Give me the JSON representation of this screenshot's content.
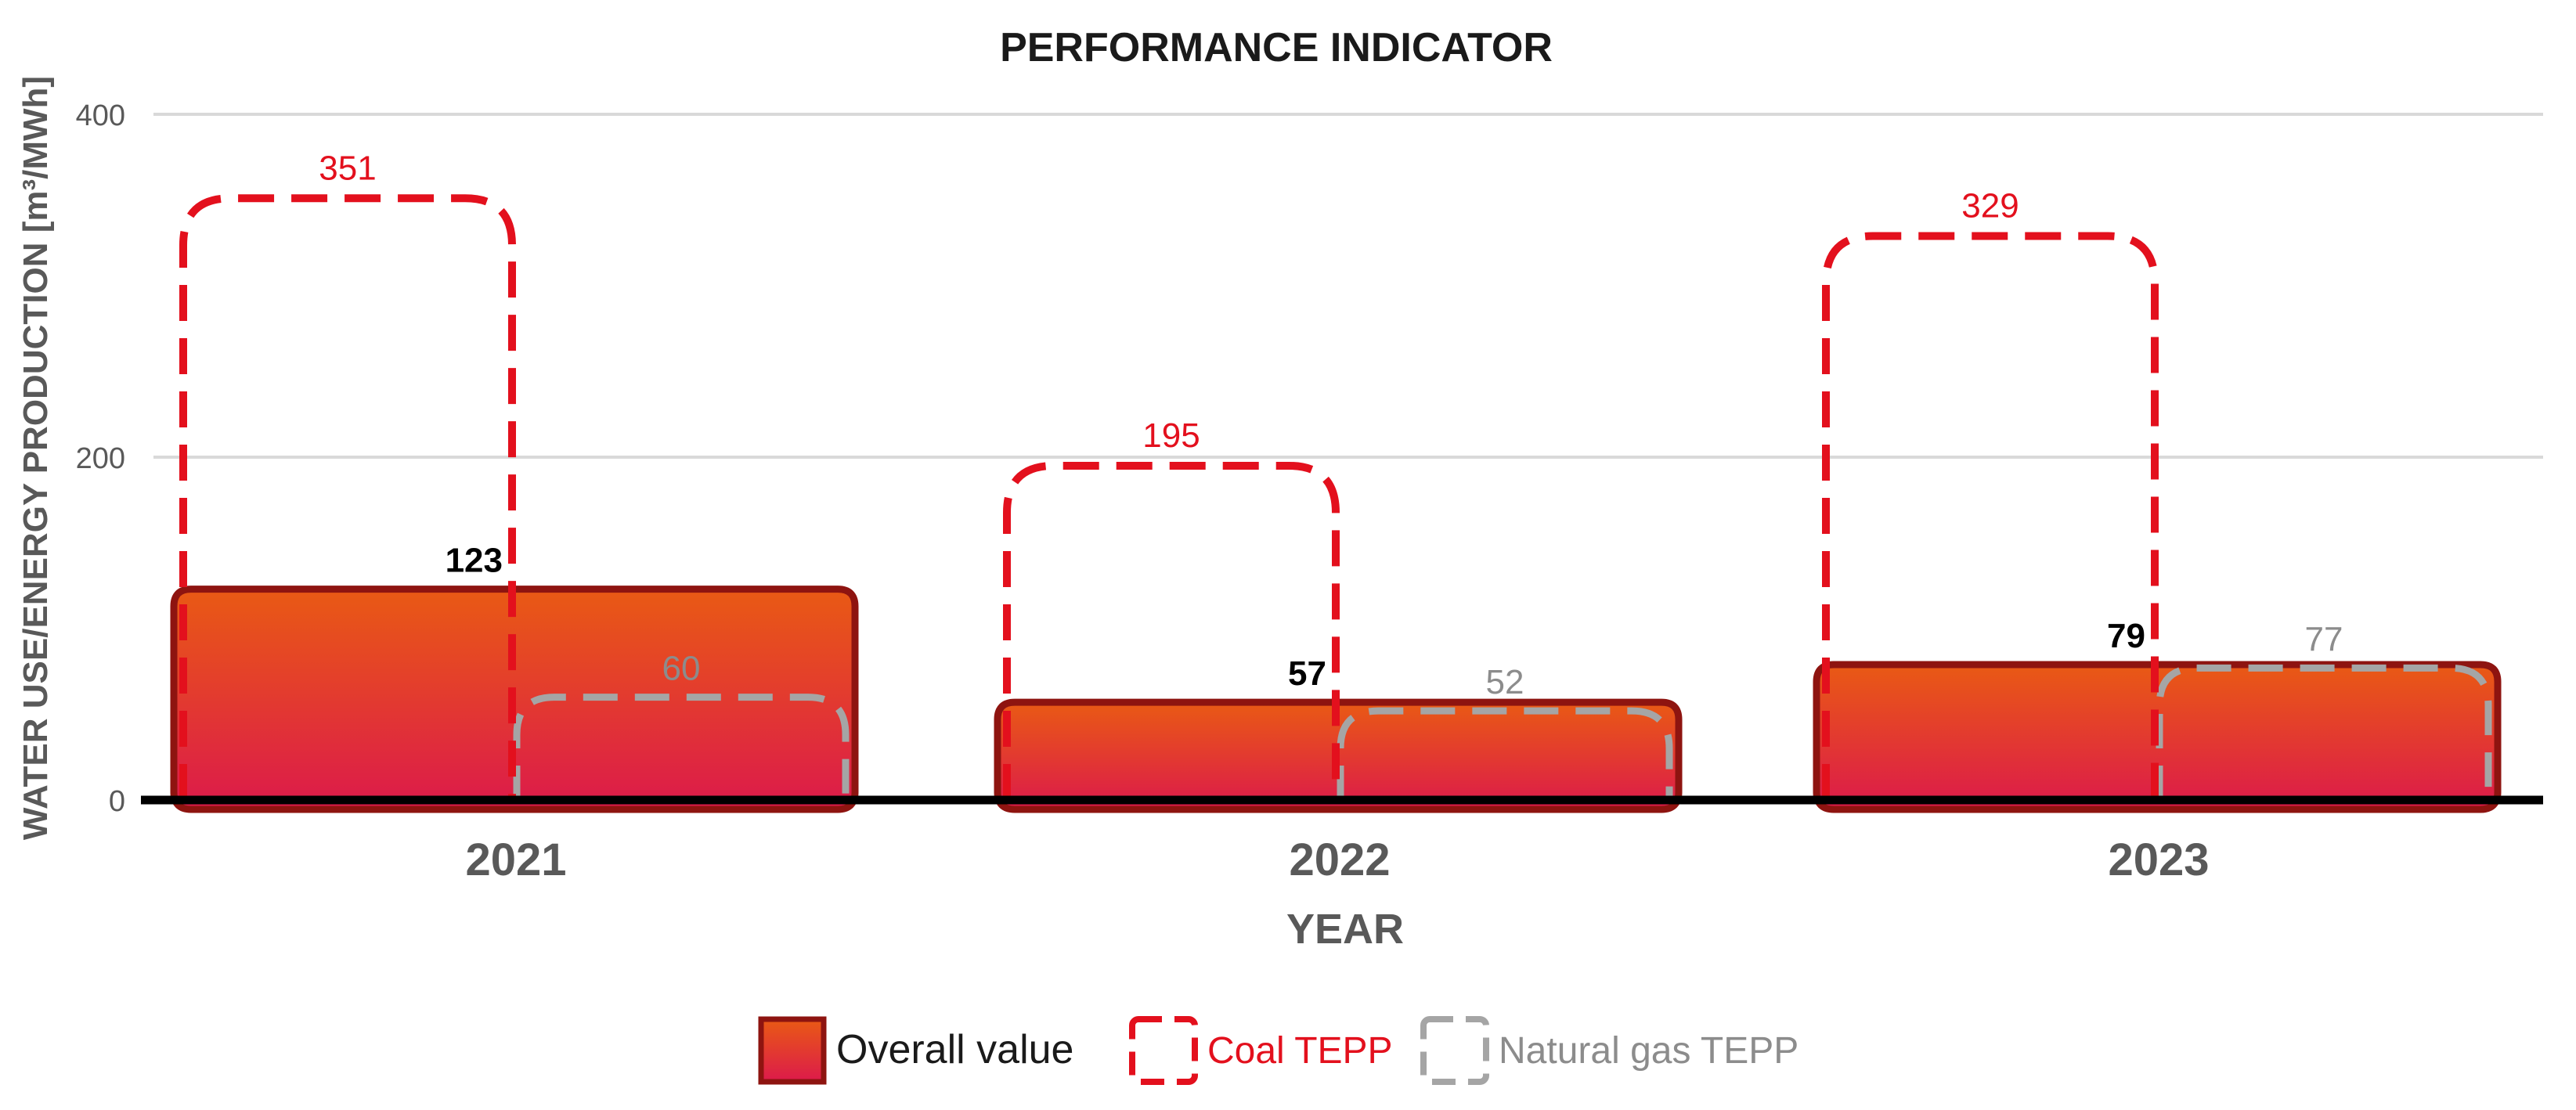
{
  "chart_data": {
    "type": "bar",
    "title": "PERFORMANCE INDICATOR",
    "xlabel": "YEAR",
    "ylabel": "WATER USE/ENERGY PRODUCTION [m³/MWh]",
    "categories": [
      "2021",
      "2022",
      "2023"
    ],
    "ylim": [
      0,
      400
    ],
    "yticks": [
      0,
      200,
      400
    ],
    "grid": true,
    "legend_position": "bottom-center",
    "series": [
      {
        "name": "Overall value",
        "values": [
          123,
          57,
          79
        ],
        "style": "filled-gradient",
        "color_top": "#E95A14",
        "color_bottom": "#DC1A4B",
        "border": "#8E1410",
        "label_color": "#000000"
      },
      {
        "name": "Coal TEPP",
        "values": [
          351,
          195,
          329
        ],
        "style": "dashed-outline",
        "color": "#E3101D",
        "label_color": "#E3101D"
      },
      {
        "name": "Natural gas TEPP",
        "values": [
          60,
          52,
          77
        ],
        "style": "dashed-outline",
        "color": "#A5A5A5",
        "label_color": "#8C8C8C"
      }
    ]
  }
}
